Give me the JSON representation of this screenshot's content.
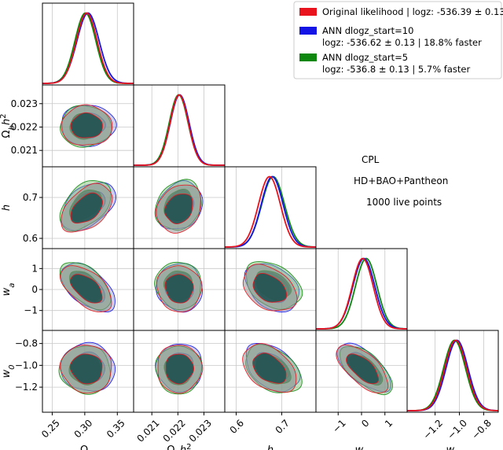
{
  "chart_data": {
    "type": "corner",
    "parameters": [
      {
        "key": "om",
        "label": "Ω",
        "sub": "m",
        "range": [
          0.235,
          0.375
        ],
        "ticks": [
          0.25,
          0.3,
          0.35
        ],
        "tick_labels": [
          "0.25",
          "0.30",
          "0.35"
        ]
      },
      {
        "key": "obh2",
        "label": "Ω",
        "sub": "b",
        "suffix": "h",
        "sup": "2",
        "range": [
          0.0203,
          0.0238
        ],
        "ticks": [
          0.021,
          0.022,
          0.023
        ],
        "tick_labels": [
          "0.021",
          "0.022",
          "0.023"
        ]
      },
      {
        "key": "h",
        "label": "h",
        "range": [
          0.575,
          0.775
        ],
        "ticks": [
          0.6,
          0.7
        ],
        "tick_labels": [
          "0.6",
          "0.7"
        ]
      },
      {
        "key": "wa",
        "label": "w",
        "sub": "a",
        "range": [
          -1.95,
          1.95
        ],
        "ticks": [
          -1,
          0,
          1
        ],
        "tick_labels": [
          "−1",
          "0",
          "1"
        ]
      },
      {
        "key": "w0",
        "label": "w",
        "sub": "0",
        "range": [
          -1.43,
          -0.68
        ],
        "ticks": [
          -1.2,
          -1.0,
          -0.8
        ],
        "tick_labels": [
          "−1.2",
          "−1.0",
          "−0.8"
        ]
      }
    ],
    "series": [
      {
        "name": "Original likelihood | logz: -536.39 ± 0.13",
        "color": "#e8131c",
        "mean": [
          0.303,
          0.02205,
          0.673,
          0.05,
          -1.03
        ],
        "sigma": [
          0.016,
          0.00035,
          0.024,
          0.45,
          0.09
        ]
      },
      {
        "name": "ANN dlogz_start=10",
        "name_line2": "logz: -536.62  ± 0.13 | 18.8% faster",
        "color": "#1414e6",
        "mean": [
          0.305,
          0.02207,
          0.679,
          0.1,
          -1.02
        ],
        "sigma": [
          0.017,
          0.00036,
          0.024,
          0.47,
          0.09
        ]
      },
      {
        "name": "ANN dlogz_start=5",
        "name_line2": "logz: -536.8  ± 0.13 | 5.7% faster",
        "color": "#0e870e",
        "mean": [
          0.301,
          0.02203,
          0.681,
          0.2,
          -1.04
        ],
        "sigma": [
          0.016,
          0.00036,
          0.025,
          0.46,
          0.09
        ]
      }
    ],
    "correlations": {
      "om_obh2": 0.0,
      "om_h": 0.45,
      "om_wa": -0.55,
      "om_w0": -0.05,
      "obh2_h": 0.2,
      "obh2_wa": -0.05,
      "obh2_w0": 0.0,
      "h_wa": -0.35,
      "h_w0": -0.4,
      "wa_w0": -0.65
    },
    "annotations": [
      "CPL",
      "HD+BAO+Pantheon",
      "1000 live points"
    ],
    "legend_position": "upper-right",
    "grid": true
  }
}
